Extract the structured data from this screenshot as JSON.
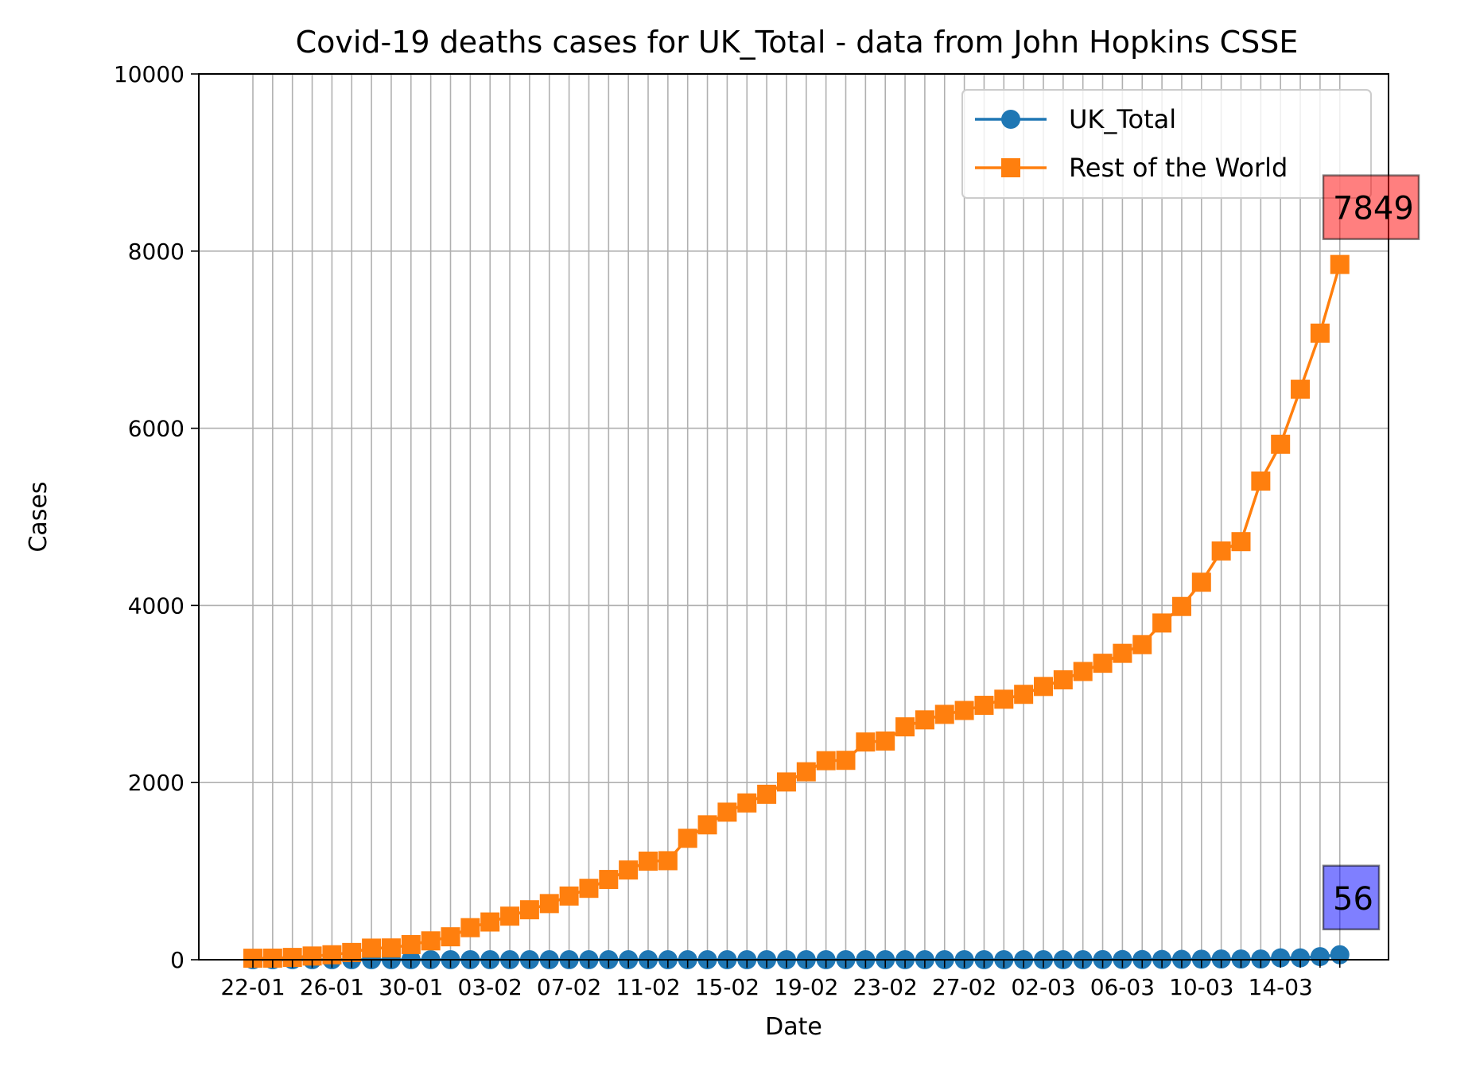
{
  "chart_data": {
    "type": "line",
    "title": "Covid-19 deaths cases for UK_Total - data from John Hopkins CSSE",
    "xlabel": "Date",
    "ylabel": "Cases",
    "ylim": [
      0,
      10000
    ],
    "yticks": [
      0,
      2000,
      4000,
      6000,
      8000,
      10000
    ],
    "x": [
      "22-01",
      "23-01",
      "24-01",
      "25-01",
      "26-01",
      "27-01",
      "28-01",
      "29-01",
      "30-01",
      "31-01",
      "01-02",
      "02-02",
      "03-02",
      "04-02",
      "05-02",
      "06-02",
      "07-02",
      "08-02",
      "09-02",
      "10-02",
      "11-02",
      "12-02",
      "13-02",
      "14-02",
      "15-02",
      "16-02",
      "17-02",
      "18-02",
      "19-02",
      "20-02",
      "21-02",
      "22-02",
      "23-02",
      "24-02",
      "25-02",
      "26-02",
      "27-02",
      "28-02",
      "29-02",
      "01-03",
      "02-03",
      "03-03",
      "04-03",
      "05-03",
      "06-03",
      "07-03",
      "08-03",
      "09-03",
      "10-03",
      "11-03",
      "12-03",
      "13-03",
      "14-03",
      "15-03",
      "16-03",
      "17-03"
    ],
    "xtick_labels": [
      "22-01",
      "26-01",
      "30-01",
      "03-02",
      "07-02",
      "11-02",
      "15-02",
      "19-02",
      "23-02",
      "27-02",
      "02-03",
      "06-03",
      "10-03",
      "14-03"
    ],
    "grid": true,
    "legend_position": "upper-right",
    "series": [
      {
        "name": "UK_Total",
        "color": "#1f77b4",
        "marker": "circle",
        "values": [
          0,
          0,
          0,
          0,
          0,
          0,
          0,
          0,
          0,
          0,
          0,
          0,
          0,
          0,
          0,
          0,
          0,
          0,
          0,
          0,
          0,
          0,
          0,
          0,
          0,
          0,
          0,
          0,
          0,
          0,
          0,
          0,
          0,
          0,
          0,
          0,
          0,
          0,
          0,
          0,
          0,
          0,
          0,
          1,
          2,
          2,
          3,
          4,
          6,
          8,
          8,
          8,
          21,
          21,
          35,
          56
        ]
      },
      {
        "name": "Rest of the World",
        "color": "#ff7f0e",
        "marker": "square",
        "values": [
          17,
          18,
          26,
          42,
          56,
          82,
          131,
          133,
          171,
          213,
          259,
          362,
          426,
          492,
          564,
          634,
          719,
          806,
          906,
          1013,
          1113,
          1118,
          1371,
          1523,
          1666,
          1770,
          1868,
          2007,
          2122,
          2247,
          2251,
          2458,
          2469,
          2629,
          2708,
          2770,
          2814,
          2872,
          2941,
          2996,
          3085,
          3160,
          3254,
          3347,
          3459,
          3557,
          3802,
          3988,
          4262,
          4615,
          4720,
          5404,
          5819,
          6440,
          7074,
          7849
        ]
      }
    ],
    "annotations": [
      {
        "series": "Rest of the World",
        "text": "7849",
        "box_color": "#ff0000"
      },
      {
        "series": "UK_Total",
        "text": "56",
        "box_color": "#0000ff"
      }
    ]
  }
}
